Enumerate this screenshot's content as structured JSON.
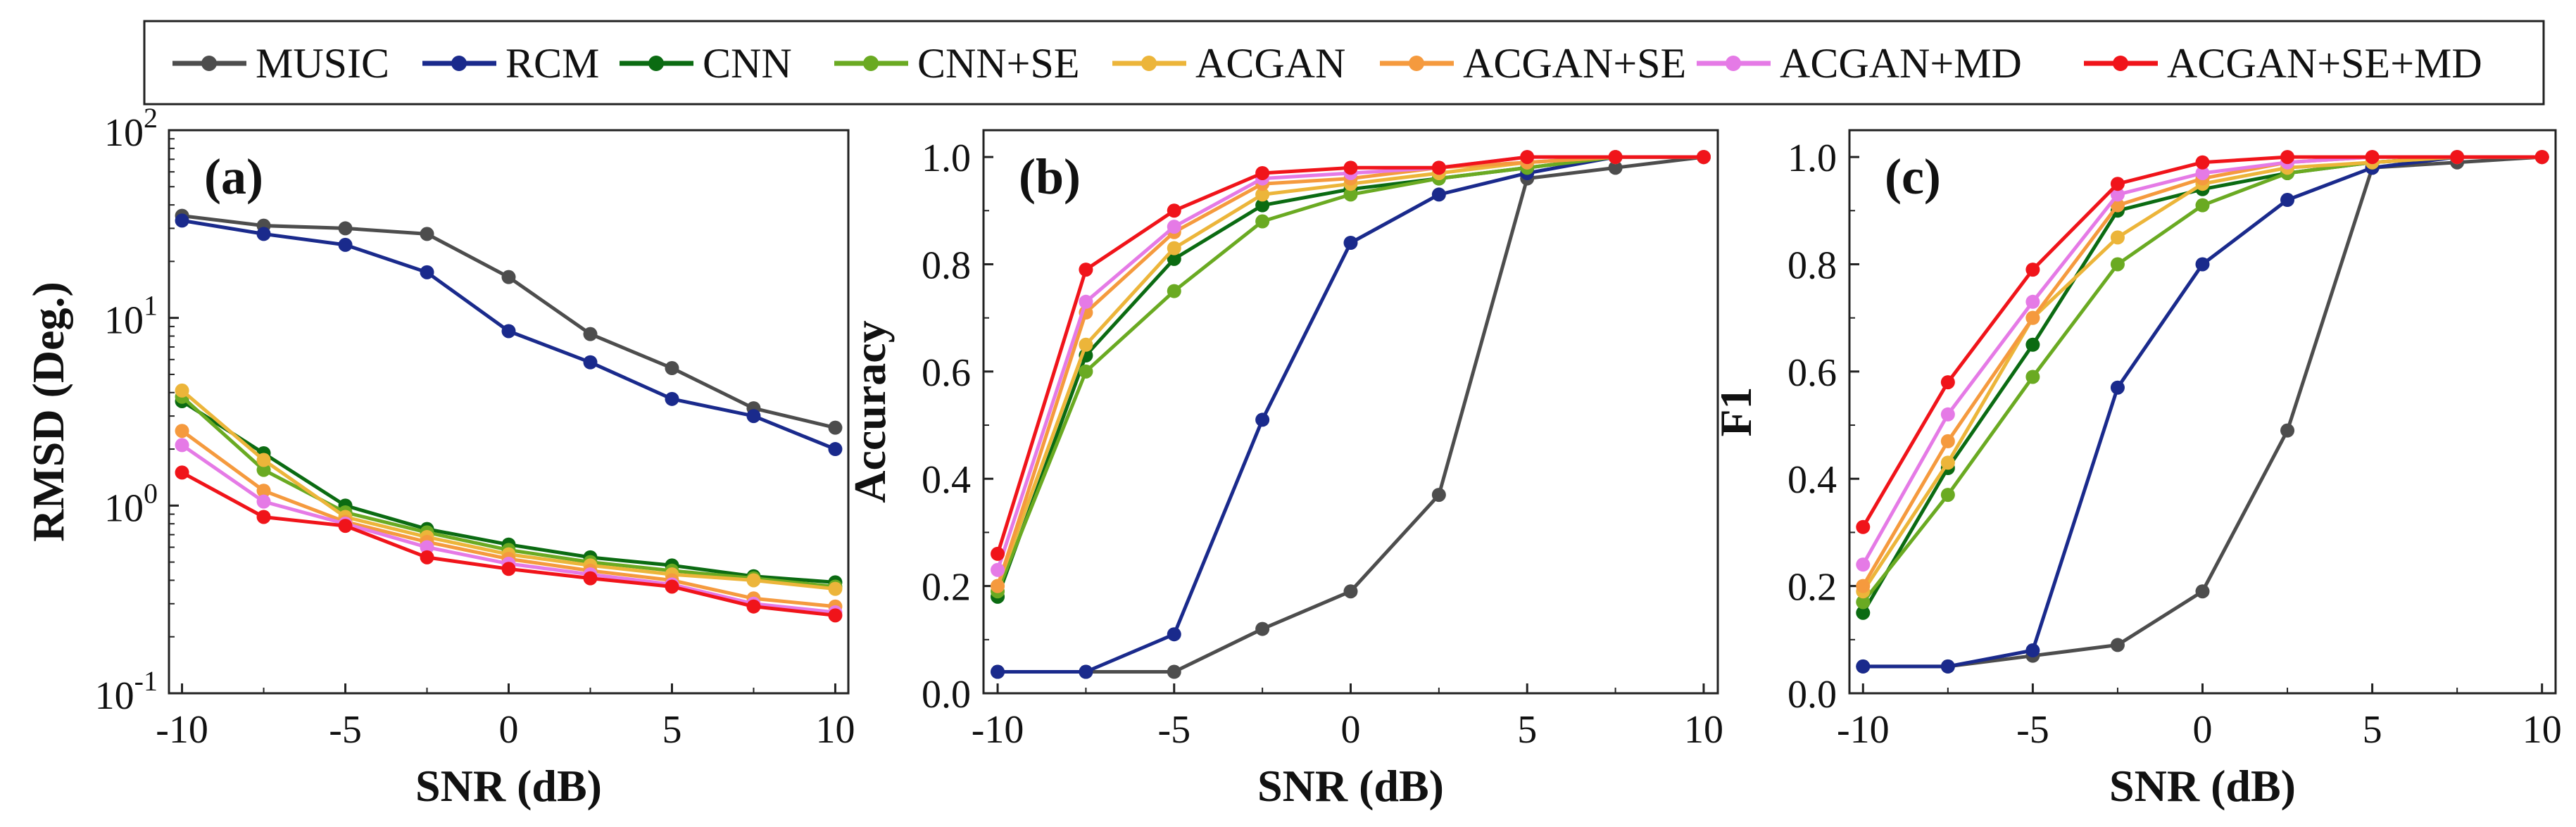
{
  "chart_data": [
    {
      "type": "line",
      "panel_label": "(a)",
      "xlabel": "SNR (dB)",
      "ylabel": "RMSD (Deg.)",
      "yscale": "log",
      "xlim": [
        -10.4,
        10.4
      ],
      "ylim": [
        0.1,
        100
      ],
      "x": [
        -10,
        -7.5,
        -5,
        -2.5,
        0,
        2.5,
        5,
        7.5,
        10
      ],
      "x_ticks": [
        -10,
        -5,
        0,
        5,
        10
      ],
      "x_tick_labels": [
        "-10",
        "-5",
        "0",
        "5",
        "10"
      ],
      "y_ticks": [
        0.1,
        1,
        10,
        100
      ],
      "y_tick_base": [
        "10",
        "10",
        "10",
        "10"
      ],
      "y_tick_exp": [
        "-1",
        "0",
        "1",
        "2"
      ],
      "series": [
        {
          "name": "MUSIC",
          "values": [
            35,
            31,
            30,
            28,
            16.5,
            8.2,
            5.4,
            3.3,
            2.6
          ]
        },
        {
          "name": "RCM",
          "values": [
            33,
            28,
            24.5,
            17.5,
            8.5,
            5.8,
            3.7,
            3.0,
            2.0
          ]
        },
        {
          "name": "CNN",
          "values": [
            3.6,
            1.9,
            1.0,
            0.75,
            0.62,
            0.53,
            0.48,
            0.42,
            0.39
          ]
        },
        {
          "name": "CNN+SE",
          "values": [
            3.8,
            1.55,
            0.92,
            0.72,
            0.58,
            0.5,
            0.45,
            0.41,
            0.37
          ]
        },
        {
          "name": "ACGAN",
          "values": [
            4.1,
            1.75,
            0.87,
            0.68,
            0.55,
            0.48,
            0.43,
            0.4,
            0.36
          ]
        },
        {
          "name": "ACGAN+SE",
          "values": [
            2.5,
            1.2,
            0.82,
            0.64,
            0.52,
            0.45,
            0.4,
            0.32,
            0.29
          ]
        },
        {
          "name": "ACGAN+MD",
          "values": [
            2.1,
            1.05,
            0.8,
            0.6,
            0.49,
            0.43,
            0.38,
            0.3,
            0.27
          ]
        },
        {
          "name": "ACGAN+SE+MD",
          "values": [
            1.5,
            0.87,
            0.78,
            0.53,
            0.46,
            0.41,
            0.37,
            0.29,
            0.26
          ]
        }
      ]
    },
    {
      "type": "line",
      "panel_label": "(b)",
      "xlabel": "SNR (dB)",
      "ylabel": "Accuracy",
      "yscale": "linear",
      "xlim": [
        -10.4,
        10.4
      ],
      "ylim": [
        0,
        1.05
      ],
      "x": [
        -10,
        -7.5,
        -5,
        -2.5,
        0,
        2.5,
        5,
        7.5,
        10
      ],
      "x_ticks": [
        -10,
        -5,
        0,
        5,
        10
      ],
      "x_tick_labels": [
        "-10",
        "-5",
        "0",
        "5",
        "10"
      ],
      "y_ticks": [
        0,
        0.2,
        0.4,
        0.6,
        0.8,
        1.0
      ],
      "y_tick_labels": [
        "0.0",
        "0.2",
        "0.4",
        "0.6",
        "0.8",
        "1.0"
      ],
      "series": [
        {
          "name": "MUSIC",
          "values": [
            0.04,
            0.04,
            0.04,
            0.12,
            0.19,
            0.37,
            0.96,
            0.98,
            1.0
          ]
        },
        {
          "name": "RCM",
          "values": [
            0.04,
            0.04,
            0.11,
            0.51,
            0.84,
            0.93,
            0.97,
            1.0,
            1.0
          ]
        },
        {
          "name": "CNN",
          "values": [
            0.18,
            0.63,
            0.81,
            0.91,
            0.94,
            0.96,
            0.98,
            1.0,
            1.0
          ]
        },
        {
          "name": "CNN+SE",
          "values": [
            0.19,
            0.6,
            0.75,
            0.88,
            0.93,
            0.96,
            0.98,
            1.0,
            1.0
          ]
        },
        {
          "name": "ACGAN",
          "values": [
            0.2,
            0.65,
            0.83,
            0.93,
            0.95,
            0.97,
            0.99,
            1.0,
            1.0
          ]
        },
        {
          "name": "ACGAN+SE",
          "values": [
            0.2,
            0.71,
            0.86,
            0.95,
            0.96,
            0.98,
            0.99,
            1.0,
            1.0
          ]
        },
        {
          "name": "ACGAN+MD",
          "values": [
            0.23,
            0.73,
            0.87,
            0.96,
            0.97,
            0.98,
            1.0,
            1.0,
            1.0
          ]
        },
        {
          "name": "ACGAN+SE+MD",
          "values": [
            0.26,
            0.79,
            0.9,
            0.97,
            0.98,
            0.98,
            1.0,
            1.0,
            1.0
          ]
        }
      ]
    },
    {
      "type": "line",
      "panel_label": "(c)",
      "xlabel": "SNR (dB)",
      "ylabel": "F1",
      "yscale": "linear",
      "xlim": [
        -10.4,
        10.4
      ],
      "ylim": [
        0,
        1.05
      ],
      "x": [
        -10,
        -7.5,
        -5,
        -2.5,
        0,
        2.5,
        5,
        7.5,
        10
      ],
      "x_ticks": [
        -10,
        -5,
        0,
        5,
        10
      ],
      "x_tick_labels": [
        "-10",
        "-5",
        "0",
        "5",
        "10"
      ],
      "y_ticks": [
        0,
        0.2,
        0.4,
        0.6,
        0.8,
        1.0
      ],
      "y_tick_labels": [
        "0.0",
        "0.2",
        "0.4",
        "0.6",
        "0.8",
        "1.0"
      ],
      "series": [
        {
          "name": "MUSIC",
          "values": [
            0.05,
            0.05,
            0.07,
            0.09,
            0.19,
            0.49,
            0.98,
            0.99,
            1.0
          ]
        },
        {
          "name": "RCM",
          "values": [
            0.05,
            0.05,
            0.08,
            0.57,
            0.8,
            0.92,
            0.98,
            1.0,
            1.0
          ]
        },
        {
          "name": "CNN",
          "values": [
            0.15,
            0.42,
            0.65,
            0.9,
            0.94,
            0.97,
            0.99,
            1.0,
            1.0
          ]
        },
        {
          "name": "CNN+SE",
          "values": [
            0.17,
            0.37,
            0.59,
            0.8,
            0.91,
            0.97,
            0.99,
            1.0,
            1.0
          ]
        },
        {
          "name": "ACGAN",
          "values": [
            0.19,
            0.43,
            0.7,
            0.85,
            0.95,
            0.98,
            0.99,
            1.0,
            1.0
          ]
        },
        {
          "name": "ACGAN+SE",
          "values": [
            0.2,
            0.47,
            0.7,
            0.91,
            0.96,
            0.99,
            1.0,
            1.0,
            1.0
          ]
        },
        {
          "name": "ACGAN+MD",
          "values": [
            0.24,
            0.52,
            0.73,
            0.93,
            0.97,
            0.99,
            1.0,
            1.0,
            1.0
          ]
        },
        {
          "name": "ACGAN+SE+MD",
          "values": [
            0.31,
            0.58,
            0.79,
            0.95,
            0.99,
            1.0,
            1.0,
            1.0,
            1.0
          ]
        }
      ]
    }
  ],
  "legend": {
    "entries": [
      {
        "name": "MUSIC",
        "color": "#4d4d4d"
      },
      {
        "name": "RCM",
        "color": "#1a2a8c"
      },
      {
        "name": "CNN",
        "color": "#0b6b12"
      },
      {
        "name": "CNN+SE",
        "color": "#6aaa22"
      },
      {
        "name": "ACGAN",
        "color": "#ecb53a"
      },
      {
        "name": "ACGAN+SE",
        "color": "#f59a3e"
      },
      {
        "name": "ACGAN+MD",
        "color": "#e57ae6"
      },
      {
        "name": "ACGAN+SE+MD",
        "color": "#f0141a"
      }
    ]
  }
}
